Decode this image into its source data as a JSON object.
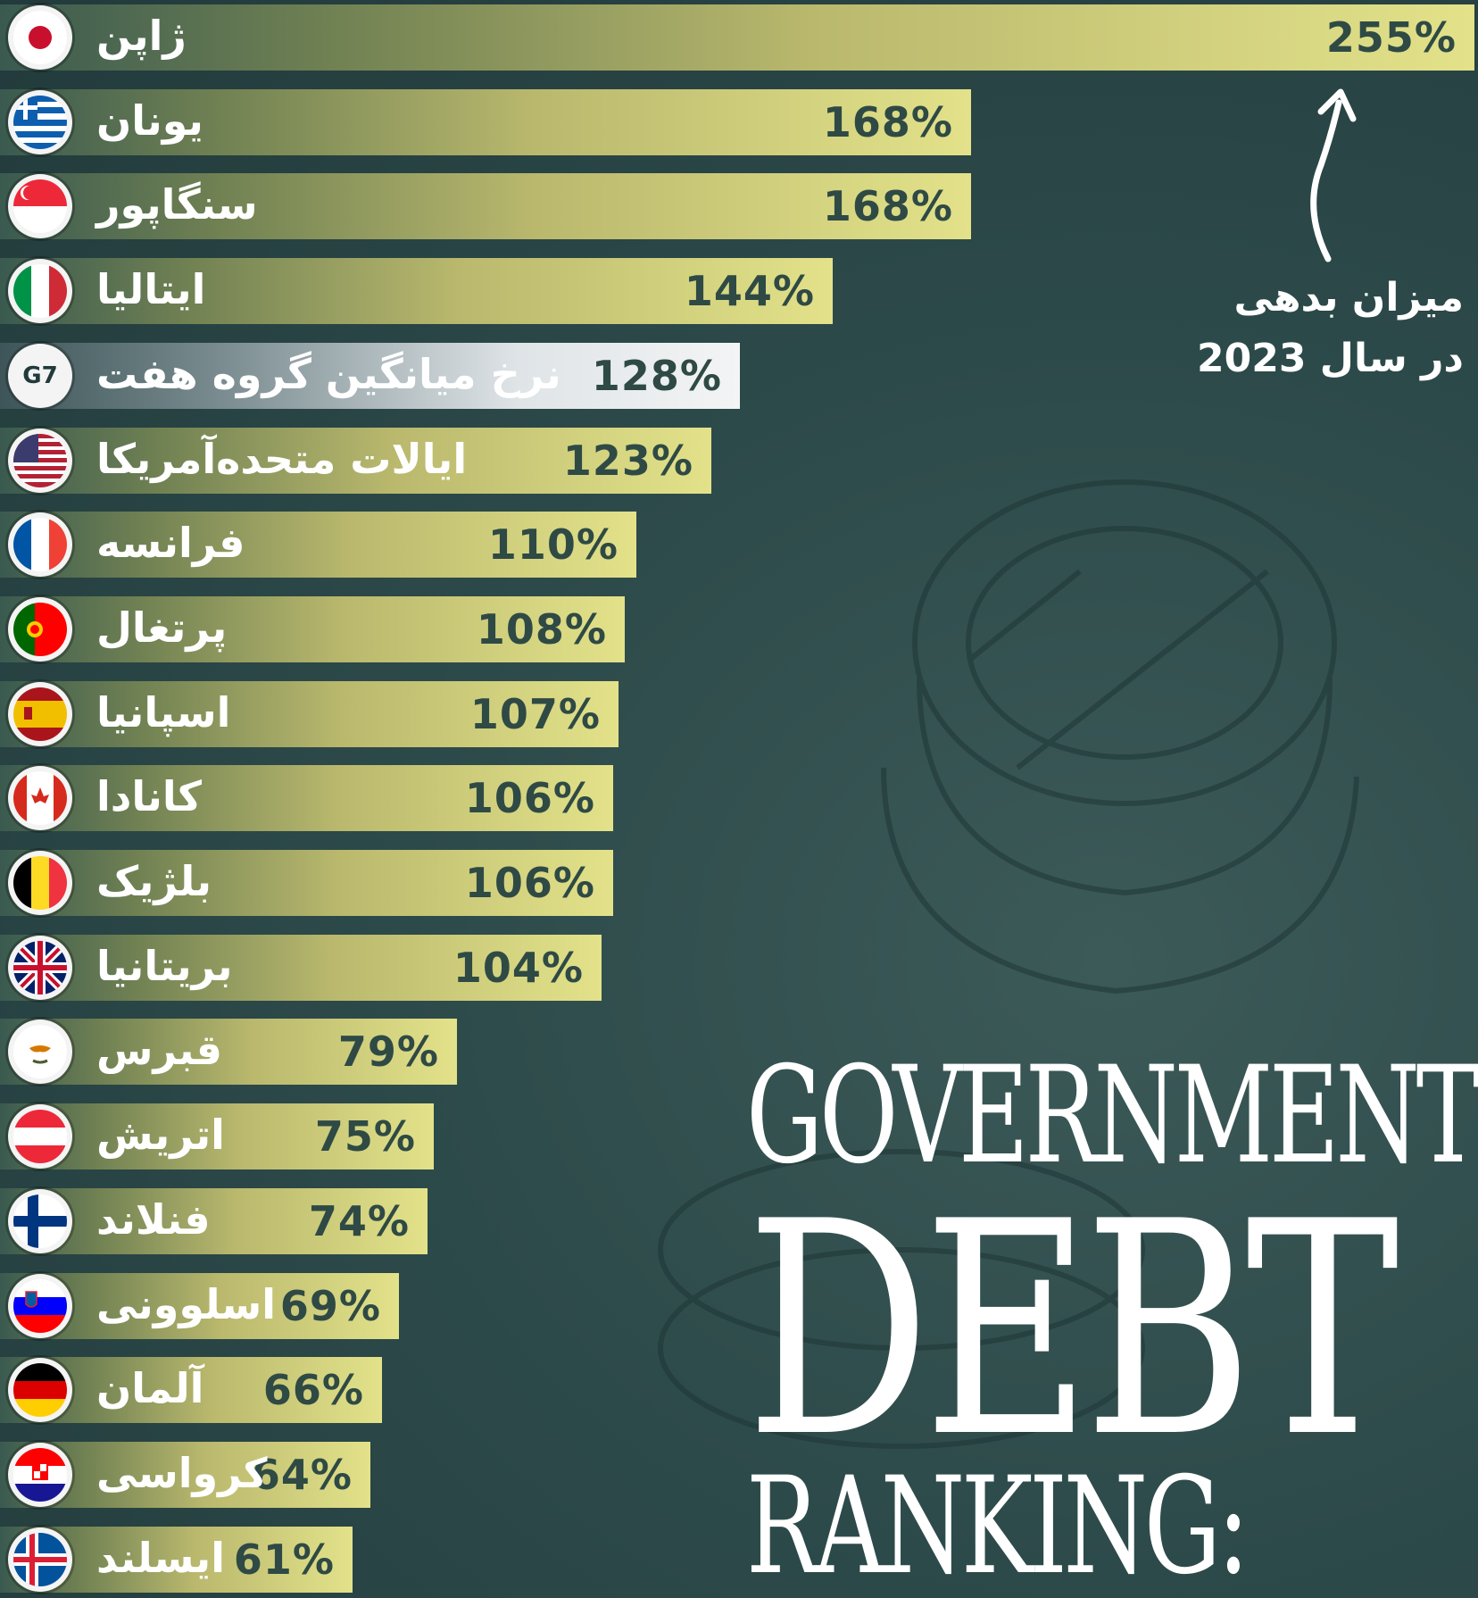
{
  "chart_data": {
    "type": "bar",
    "orientation": "horizontal",
    "title": "GOVERNMENT DEBT RANKING:",
    "title_lines": [
      "GOVERNMENT",
      "DEBT",
      "RANKING:"
    ],
    "annotation": [
      "میزان بدهی",
      "در سال 2023"
    ],
    "unit": "%",
    "categories": [
      "ژاپن",
      "یونان",
      "سنگاپور",
      "ایتالیا",
      "نرخ میانگین گروه هفت",
      "ایالات متحده‌آمریکا",
      "فرانسه",
      "پرتغال",
      "اسپانیا",
      "کانادا",
      "بلژیک",
      "بریتانیا",
      "قبرس",
      "اتریش",
      "فنلاند",
      "اسلوونی",
      "آلمان",
      "کرواسی",
      "ایسلند"
    ],
    "values": [
      255,
      168,
      168,
      144,
      128,
      123,
      110,
      108,
      107,
      106,
      106,
      104,
      79,
      75,
      74,
      69,
      66,
      64,
      61
    ],
    "labels": [
      "255%",
      "168%",
      "168%",
      "144%",
      "128%",
      "123%",
      "110%",
      "108%",
      "107%",
      "106%",
      "106%",
      "104%",
      "79%",
      "75%",
      "74%",
      "69%",
      "66%",
      "64%",
      "61%"
    ],
    "flags": [
      "japan-flag",
      "greece-flag",
      "singapore-flag",
      "italy-flag",
      "g7-badge",
      "usa-flag",
      "france-flag",
      "portugal-flag",
      "spain-flag",
      "canada-flag",
      "belgium-flag",
      "uk-flag",
      "cyprus-flag",
      "austria-flag",
      "finland-flag",
      "slovenia-flag",
      "germany-flag",
      "croatia-flag",
      "iceland-flag"
    ],
    "g7_code": "G7",
    "highlight_index": 4,
    "grid": false,
    "colors": {
      "background": "#2b4748",
      "bar_light": "#e3e28a",
      "bar_dark": "#3a5a50",
      "g7_bar": "#f3f4f5",
      "value_text": "#2f4a45",
      "label_text": "#ffffff"
    }
  }
}
